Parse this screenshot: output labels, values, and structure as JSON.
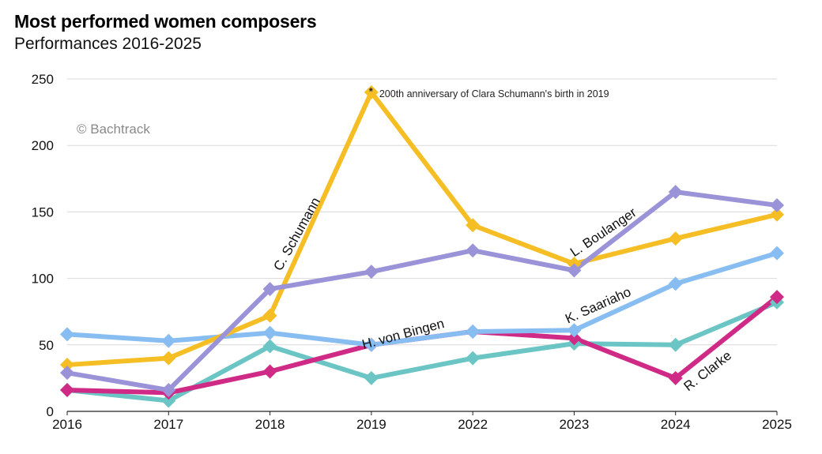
{
  "chart_data": {
    "type": "line",
    "title": "Most performed women composers",
    "subtitle": "Performances 2016-2025",
    "watermark": "© Bachtrack",
    "annotation": {
      "marker": "*",
      "text": "200th anniversary of Clara Schumann's birth in 2019"
    },
    "categories": [
      "2016",
      "2017",
      "2018",
      "2019",
      "2022",
      "2023",
      "2024",
      "2025"
    ],
    "ylim": [
      0,
      250
    ],
    "yticks": [
      0,
      50,
      100,
      150,
      200,
      250
    ],
    "grid": true,
    "series": [
      {
        "name": "H. von Bingen",
        "color": "#6cc5c5",
        "values": [
          16,
          8,
          49,
          25,
          40,
          51,
          50,
          82
        ]
      },
      {
        "name": "R. Clarke",
        "color": "#cf2a86",
        "values": [
          16,
          14,
          30,
          50,
          60,
          55,
          25,
          86
        ]
      },
      {
        "name": "K. Saariaho",
        "color": "#88bdf2",
        "values": [
          58,
          53,
          59,
          50,
          60,
          61,
          96,
          119
        ]
      },
      {
        "name": "C. Schumann",
        "color": "#f5be25",
        "values": [
          35,
          40,
          72,
          240,
          140,
          111,
          130,
          148
        ]
      },
      {
        "name": "L. Boulanger",
        "color": "#9b93d8",
        "values": [
          29,
          16,
          92,
          105,
          121,
          106,
          165,
          155
        ]
      }
    ]
  }
}
